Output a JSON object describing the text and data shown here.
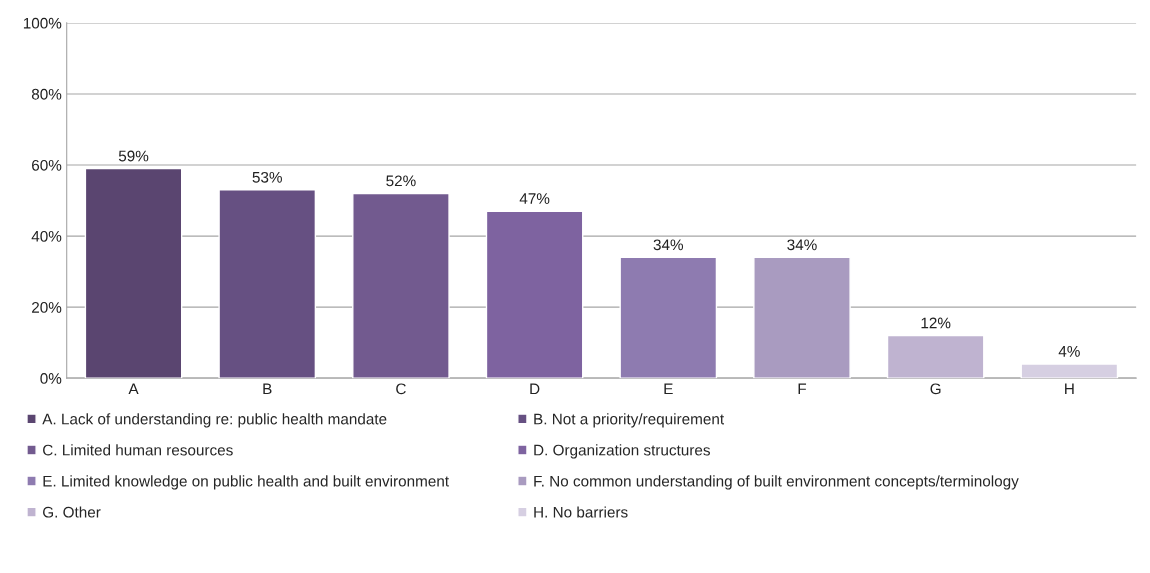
{
  "chart_data": {
    "type": "bar",
    "stacked": true,
    "categories": [
      "A",
      "B",
      "C",
      "D",
      "E",
      "F",
      "G",
      "H"
    ],
    "series": [
      {
        "name": "A. Lack of understanding re: public health mandate",
        "color": "#5a4570",
        "values": [
          59,
          null,
          null,
          null,
          null,
          null,
          null,
          null
        ],
        "value_labels": [
          "59%",
          null,
          null,
          null,
          null,
          null,
          null,
          null
        ]
      },
      {
        "name": "B. Not a priority/requirement",
        "color": "#665082",
        "values": [
          null,
          53,
          null,
          null,
          null,
          null,
          null,
          null
        ],
        "value_labels": [
          null,
          "53%",
          null,
          null,
          null,
          null,
          null,
          null
        ]
      },
      {
        "name": "C. Limited human resources",
        "color": "#725a8f",
        "values": [
          null,
          null,
          52,
          null,
          null,
          null,
          null,
          null
        ],
        "value_labels": [
          null,
          null,
          "52%",
          null,
          null,
          null,
          null,
          null
        ]
      },
      {
        "name": "D. Organization structures",
        "color": "#7e63a0",
        "values": [
          null,
          null,
          null,
          47,
          null,
          null,
          null,
          null
        ],
        "value_labels": [
          null,
          null,
          null,
          "47%",
          null,
          null,
          null,
          null
        ]
      },
      {
        "name": "E. Limited knowledge on public health and built environment",
        "color": "#8e7bb0",
        "values": [
          null,
          null,
          null,
          null,
          34,
          null,
          null,
          null
        ],
        "value_labels": [
          null,
          null,
          null,
          null,
          "34%",
          null,
          null,
          null
        ]
      },
      {
        "name": "F. No common understanding of built environment concepts/terminology",
        "color": "#a99bc0",
        "values": [
          null,
          null,
          null,
          null,
          null,
          34,
          null,
          null
        ],
        "value_labels": [
          null,
          null,
          null,
          null,
          null,
          "34%",
          null,
          null
        ]
      },
      {
        "name": "G. Other",
        "color": "#bfb3d0",
        "values": [
          null,
          null,
          null,
          null,
          null,
          null,
          12,
          null
        ],
        "value_labels": [
          null,
          null,
          null,
          null,
          null,
          null,
          "12%",
          null
        ]
      },
      {
        "name": "H. No barriers",
        "color": "#d6cfe2",
        "values": [
          null,
          null,
          null,
          null,
          null,
          null,
          null,
          4
        ],
        "value_labels": [
          null,
          null,
          null,
          null,
          null,
          null,
          null,
          "4%"
        ]
      }
    ],
    "ylim": [
      0,
      100
    ],
    "yticks": [
      {
        "value": 0,
        "label": "0%"
      },
      {
        "value": 20,
        "label": "20%"
      },
      {
        "value": 40,
        "label": "40%"
      },
      {
        "value": 60,
        "label": "60%"
      },
      {
        "value": 80,
        "label": "80%"
      },
      {
        "value": 100,
        "label": "100%"
      }
    ],
    "grid": "y",
    "legend": "bottom"
  }
}
